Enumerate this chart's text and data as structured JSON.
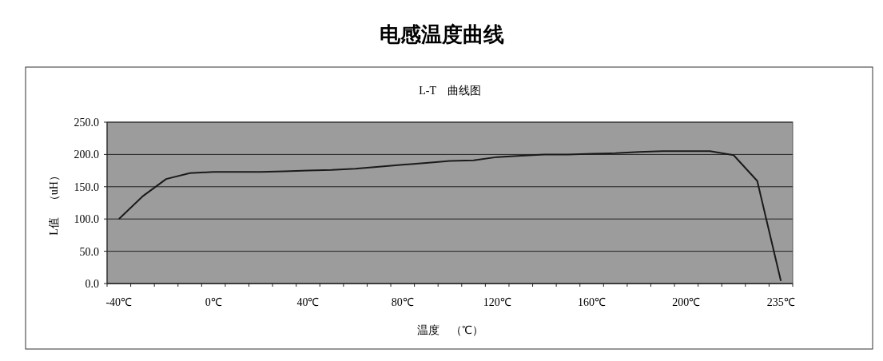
{
  "chart_data": {
    "type": "line",
    "title": "电感温度曲线",
    "subtitle": "L-T　曲线图",
    "xlabel": "温度　（℃）",
    "ylabel": "L值　（uH）",
    "categories": [
      "-40℃",
      null,
      null,
      null,
      "0℃",
      null,
      null,
      null,
      "40℃",
      null,
      null,
      null,
      "80℃",
      null,
      null,
      null,
      "120℃",
      null,
      null,
      null,
      "160℃",
      null,
      null,
      null,
      "200℃",
      null,
      null,
      null,
      "235℃"
    ],
    "series": [
      {
        "color": "#1a1a1a",
        "values": [
          100,
          135,
          162,
          171,
          173,
          173,
          173,
          174,
          175,
          176,
          178,
          181,
          184,
          187,
          190,
          191,
          196,
          198,
          200,
          200,
          201,
          202,
          204,
          205,
          205,
          205,
          199,
          159,
          4
        ]
      }
    ],
    "ylim": [
      0,
      250
    ],
    "yticks": [
      {
        "value": 0,
        "label": "0.0"
      },
      {
        "value": 50,
        "label": "50.0"
      },
      {
        "value": 100,
        "label": "100.0"
      },
      {
        "value": 150,
        "label": "150.0"
      },
      {
        "value": 200,
        "label": "200.0"
      },
      {
        "value": 250,
        "label": "250.0"
      }
    ],
    "grid": "y"
  }
}
